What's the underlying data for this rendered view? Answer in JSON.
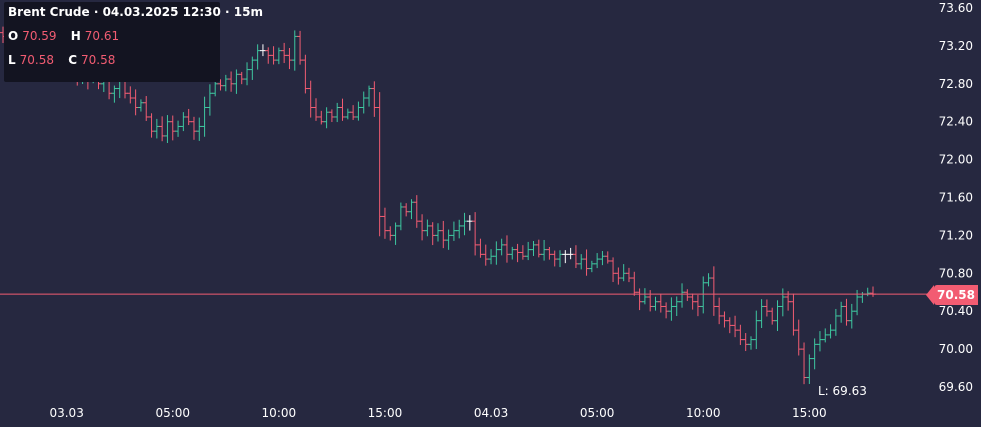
{
  "ohlc_panel": {
    "title": "Brent Crude · 04.03.2025 12:30 · 15m",
    "open_key": "O",
    "open": "70.59",
    "high_key": "H",
    "high": "70.61",
    "low_key": "L",
    "low": "70.58",
    "close_key": "C",
    "close": "70.58"
  },
  "price_tag": "70.58",
  "low_label": "L: 69.63",
  "colors": {
    "background": "#262840",
    "up": "#3ec7a0",
    "down": "#f25c72",
    "doji": "#ffffff",
    "price_line": "#f25c72"
  },
  "chart_data": {
    "type": "ohlc",
    "instrument": "Brent Crude",
    "interval": "15m",
    "y_ticks": [
      "73.60",
      "73.20",
      "72.80",
      "72.40",
      "72.00",
      "71.60",
      "71.20",
      "70.80",
      "70.40",
      "70.00",
      "69.60"
    ],
    "ylim": [
      69.45,
      73.7
    ],
    "x_ticks": [
      {
        "label": "03.03",
        "idx": 12
      },
      {
        "label": "05:00",
        "idx": 32
      },
      {
        "label": "10:00",
        "idx": 52
      },
      {
        "label": "15:00",
        "idx": 72
      },
      {
        "label": "04.03",
        "idx": 92
      },
      {
        "label": "05:00",
        "idx": 112
      },
      {
        "label": "10:00",
        "idx": 132
      },
      {
        "label": "15:00",
        "idx": 152
      }
    ],
    "last_price": 70.58,
    "session_low": 69.63,
    "closes": [
      73.3,
      73.4,
      73.3,
      73.2,
      73.4,
      73.1,
      73.2,
      73.1,
      73.05,
      73.0,
      72.95,
      73.0,
      72.95,
      72.9,
      72.85,
      72.95,
      72.85,
      72.9,
      72.8,
      72.85,
      72.7,
      72.75,
      72.85,
      72.7,
      72.65,
      72.55,
      72.6,
      72.45,
      72.3,
      72.35,
      72.25,
      72.4,
      72.3,
      72.35,
      72.45,
      72.4,
      72.3,
      72.35,
      72.55,
      72.7,
      72.8,
      72.78,
      72.85,
      72.8,
      72.9,
      72.85,
      72.95,
      73.05,
      73.15,
      73.15,
      73.1,
      73.05,
      73.15,
      73.1,
      73.05,
      73.3,
      73.05,
      72.75,
      72.55,
      72.45,
      72.4,
      72.5,
      72.45,
      72.55,
      72.45,
      72.5,
      72.45,
      72.55,
      72.65,
      72.75,
      72.55,
      71.4,
      71.25,
      71.2,
      71.3,
      71.5,
      71.45,
      71.55,
      71.35,
      71.25,
      71.3,
      71.2,
      71.25,
      71.15,
      71.2,
      71.25,
      71.3,
      71.35,
      71.35,
      71.1,
      71.0,
      70.95,
      70.98,
      71.05,
      71.1,
      71.0,
      71.05,
      71.02,
      70.98,
      71.05,
      71.1,
      71.0,
      71.05,
      71.0,
      70.95,
      71.0,
      71.0,
      71.0,
      70.9,
      70.95,
      70.85,
      70.9,
      70.95,
      70.98,
      70.93,
      70.8,
      70.75,
      70.8,
      70.75,
      70.6,
      70.5,
      70.55,
      70.45,
      70.5,
      70.45,
      70.4,
      70.45,
      70.5,
      70.6,
      70.55,
      70.5,
      70.45,
      70.7,
      70.75,
      70.45,
      70.35,
      70.3,
      70.25,
      70.2,
      70.1,
      70.05,
      70.1,
      70.3,
      70.45,
      70.4,
      70.3,
      70.45,
      70.55,
      70.5,
      70.2,
      70.0,
      69.7,
      69.9,
      70.05,
      70.1,
      70.15,
      70.2,
      70.35,
      70.45,
      70.3,
      70.4,
      70.55,
      70.58,
      70.59,
      70.58
    ]
  }
}
